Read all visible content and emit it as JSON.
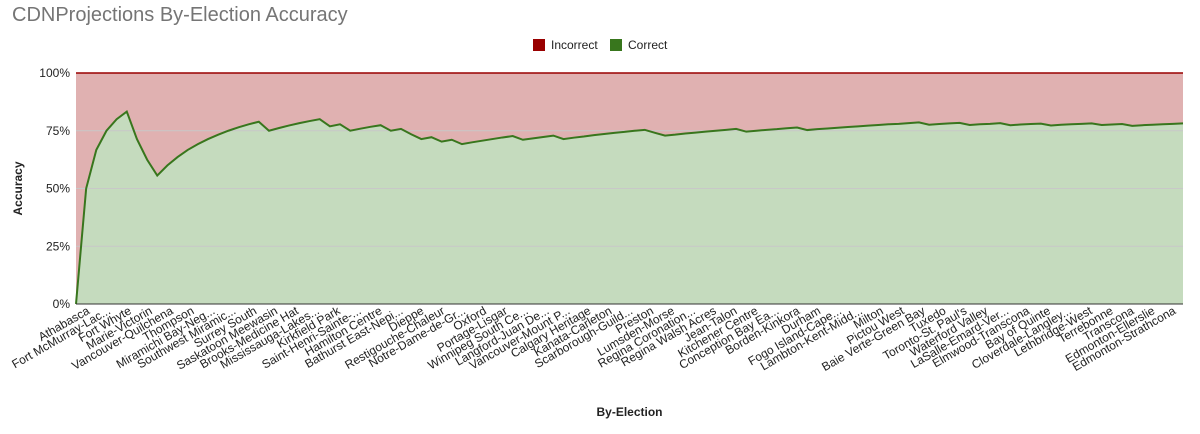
{
  "chart_data": {
    "type": "area",
    "title": "CDNProjections By-Election Accuracy",
    "xlabel": "By-Election",
    "ylabel": "Accuracy",
    "ylim": [
      0,
      100
    ],
    "yticks": [
      "0%",
      "25%",
      "50%",
      "75%",
      "100%"
    ],
    "grid": true,
    "legend_position": "top",
    "legend": [
      {
        "name": "Incorrect",
        "color": "#990000"
      },
      {
        "name": "Correct",
        "color": "#38761d"
      }
    ],
    "colors": {
      "correct_fill": "#c5dbbe",
      "incorrect_fill": "#e0b1b1",
      "correct_line": "#38761d",
      "incorrect_line": "#990000",
      "grid": "#c8c8c8"
    },
    "tick_labels": [
      "Athabasca",
      "Fort McMurray-Lac...",
      "Fort Whyte",
      "Marie-Victorin",
      "Vancouver-Quilchena",
      "Thompson",
      "Miramichi Bay-Neg...",
      "Southwest Miramic...",
      "Surrey South",
      "Saskatoon Meewasin",
      "Brooks-Medicine Hat",
      "Mississauga-Lakes...",
      "Kirkfield Park",
      "Saint-Henri-Sainte-...",
      "Hamilton Centre",
      "Bathurst East-Nepi...",
      "Dieppe",
      "Restigouche-Chaleur",
      "Notre-Dame-de-Gr...",
      "Oxford",
      "Portage-Lisgar",
      "Winnipeg South Ce...",
      "Langford-Juan De...",
      "Vancouver-Mount P...",
      "Calgary Heritage",
      "Kanata-Carleton",
      "Scarborough-Guild...",
      "Preston",
      "Lumsden-Morse",
      "Regina Coronation...",
      "Regina Walsh Acres",
      "Jean-Talon",
      "Kitchener Centre",
      "Conception Bay Ea...",
      "Borden-Kinkora",
      "Durham",
      "Fogo Island-Cape...",
      "Lambton-Kent-Midd...",
      "Milton",
      "Pictou West",
      "Baie Verte-Green Bay",
      "Tuxedo",
      "Toronto-St. Paul's",
      "Waterford Valley",
      "LaSalle-Emard-Ver...",
      "Elmwood-Transcona",
      "Bay of Quinte",
      "Cloverdale-Langley...",
      "Lethbridge-West",
      "Terrebonne",
      "Transcona",
      "Edmonton-Ellerslie",
      "Edmonton-Strathcona"
    ],
    "x": [
      0,
      1,
      2,
      3,
      4,
      5,
      6,
      7,
      8,
      9,
      10,
      11,
      12,
      13,
      14,
      15,
      16,
      17,
      18,
      19,
      20,
      21,
      22,
      23,
      24,
      25,
      26,
      27,
      28,
      29,
      30,
      31,
      32,
      33,
      34,
      35,
      36,
      37,
      38,
      39,
      40,
      41,
      42,
      43,
      44,
      45,
      46,
      47,
      48,
      49,
      50,
      51,
      52,
      53,
      54,
      55,
      56,
      57,
      58,
      59,
      60,
      61,
      62,
      63,
      64,
      65,
      66,
      67,
      68,
      69,
      70,
      71,
      72,
      73,
      74,
      75,
      76,
      77,
      78,
      79,
      80,
      81,
      82,
      83,
      84,
      85,
      86,
      87,
      88,
      89,
      90,
      91,
      92,
      93,
      94,
      95,
      96,
      97,
      98,
      99,
      100,
      101,
      102,
      103,
      104,
      105,
      106,
      107,
      108,
      109
    ],
    "series": [
      {
        "name": "Correct",
        "values": [
          0,
          50,
          66.7,
          75,
          80,
          83.3,
          71.4,
          62.5,
          55.6,
          60,
          63.6,
          66.7,
          69.2,
          71.4,
          73.3,
          75,
          76.5,
          77.8,
          78.9,
          75,
          76.2,
          77.3,
          78.3,
          79.2,
          80,
          76.9,
          77.8,
          75,
          75.9,
          76.7,
          77.4,
          75,
          75.8,
          73.5,
          71.4,
          72.2,
          70.3,
          71.1,
          69.2,
          70,
          70.7,
          71.4,
          72.1,
          72.7,
          71.1,
          71.7,
          72.3,
          72.9,
          71.4,
          72,
          72.5,
          73.1,
          73.6,
          74.1,
          74.5,
          75,
          75.4,
          74.1,
          72.9,
          73.3,
          73.8,
          74.2,
          74.6,
          75,
          75.4,
          75.8,
          74.6,
          75,
          75.4,
          75.7,
          76.1,
          76.4,
          75.3,
          75.7,
          76,
          76.3,
          76.6,
          76.9,
          77.2,
          77.5,
          77.8,
          78,
          78.3,
          78.6,
          77.6,
          77.9,
          78.2,
          78.4,
          77.5,
          77.8,
          78,
          78.3,
          77.4,
          77.7,
          77.9,
          78.1,
          77.3,
          77.6,
          77.8,
          78,
          78.2,
          77.5,
          77.7,
          77.9,
          77.1,
          77.4,
          77.6,
          77.8,
          78,
          78.2
        ]
      },
      {
        "name": "Incorrect",
        "values": [
          100,
          50,
          33.3,
          25,
          20,
          16.7,
          28.6,
          37.5,
          44.4,
          40,
          36.4,
          33.3,
          30.8,
          28.6,
          26.7,
          25,
          23.5,
          22.2,
          21.1,
          25,
          23.8,
          22.7,
          21.7,
          20.8,
          20,
          23.1,
          22.2,
          25,
          24.1,
          23.3,
          22.6,
          25,
          24.2,
          26.5,
          28.6,
          27.8,
          29.7,
          28.9,
          30.8,
          30,
          29.3,
          28.6,
          27.9,
          27.3,
          28.9,
          28.3,
          27.7,
          27.1,
          28.6,
          28,
          27.5,
          26.9,
          26.4,
          25.9,
          25.5,
          25,
          24.6,
          25.9,
          27.1,
          26.7,
          26.2,
          25.8,
          25.4,
          25,
          24.6,
          24.2,
          25.4,
          25,
          24.6,
          24.3,
          23.9,
          23.6,
          24.7,
          24.3,
          24,
          23.7,
          23.4,
          23.1,
          22.8,
          22.5,
          22.2,
          22,
          21.7,
          21.4,
          22.4,
          22.1,
          21.8,
          21.6,
          22.5,
          22.2,
          22,
          21.7,
          22.6,
          22.3,
          22.1,
          21.9,
          22.7,
          22.4,
          22.2,
          22,
          21.8,
          22.5,
          22.3,
          22.1,
          22.9,
          22.6,
          22.4,
          22.2,
          22,
          21.8
        ]
      }
    ]
  }
}
